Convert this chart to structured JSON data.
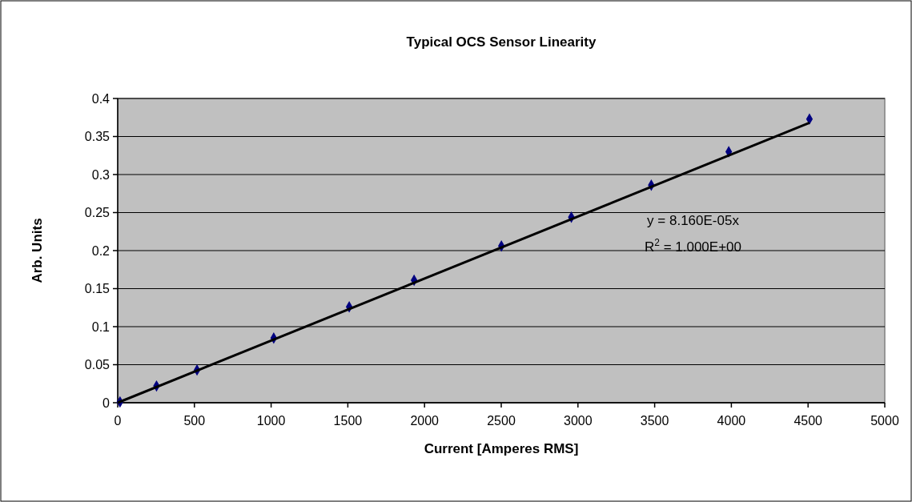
{
  "chart_data": {
    "type": "scatter",
    "title": "Typical OCS Sensor Linearity",
    "xlabel": "Current [Amperes RMS]",
    "ylabel": "Arb. Units",
    "xlim": [
      0,
      5000
    ],
    "xticks": [
      0,
      500,
      1000,
      1500,
      2000,
      2500,
      3000,
      3500,
      4000,
      4500,
      5000
    ],
    "ylim": [
      0,
      0.4
    ],
    "yticks": [
      0,
      0.05,
      0.1,
      0.15,
      0.2,
      0.25,
      0.3,
      0.35,
      0.4
    ],
    "grid": "y",
    "series": [
      {
        "marker": "diamond",
        "color": "#000080",
        "x": [
          15,
          253,
          517,
          1017,
          1509,
          1932,
          2501,
          2957,
          3478,
          3983,
          4509
        ],
        "values": [
          0.001,
          0.022,
          0.043,
          0.085,
          0.126,
          0.161,
          0.206,
          0.244,
          0.286,
          0.33,
          0.373
        ]
      },
      {
        "type": "line",
        "color": "#000000",
        "x": [
          0,
          4509
        ],
        "values": [
          0,
          0.368
        ]
      }
    ],
    "annotations": [
      "y = 8.160E-05x",
      "R$^{2}$ = 1.000E+00"
    ]
  }
}
